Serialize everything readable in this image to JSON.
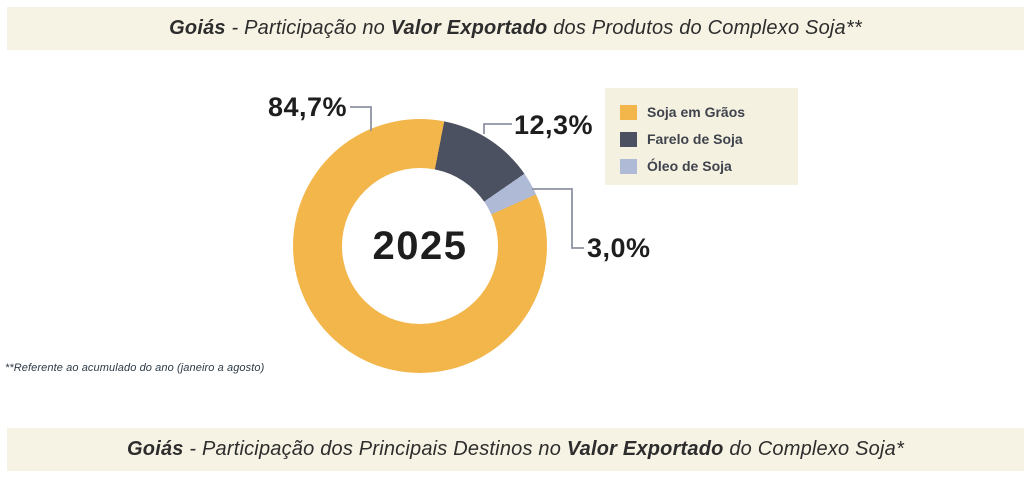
{
  "titles": {
    "top": {
      "parts": [
        {
          "text": "Goiás",
          "bold": true
        },
        {
          "text": " - Participação no ",
          "bold": false
        },
        {
          "text": "Valor Exportado",
          "bold": true
        },
        {
          "text": " dos Produtos do Complexo Soja**",
          "bold": false
        }
      ]
    },
    "bottom": {
      "parts": [
        {
          "text": "Goiás",
          "bold": true
        },
        {
          "text": " - Participação dos Principais Destinos no ",
          "bold": false
        },
        {
          "text": "Valor Exportado",
          "bold": true
        },
        {
          "text": " do Complexo Soja*",
          "bold": false
        }
      ]
    }
  },
  "chart_data": {
    "type": "pie",
    "subtype": "donut",
    "title": "Goiás - Participação no Valor Exportado dos Produtos do Complexo Soja**",
    "center_label": "2025",
    "start_angle_deg": 11,
    "slices": [
      {
        "label": "Farelo de Soja",
        "value": 12.3,
        "display": "12,3%",
        "color": "#4C5162"
      },
      {
        "label": "Óleo de Soja",
        "value": 3.0,
        "display": "3,0%",
        "color": "#AFBAD6"
      },
      {
        "label": "Soja em Grãos",
        "value": 84.7,
        "display": "84,7%",
        "color": "#F2B64B"
      }
    ],
    "legend": {
      "position": "top-right",
      "items": [
        {
          "label": "Soja em Grãos",
          "color": "#F2B64B"
        },
        {
          "label": "Farelo de Soja",
          "color": "#4C5162"
        },
        {
          "label": "Óleo de Soja",
          "color": "#AFBAD6"
        }
      ]
    },
    "footnote": "**Referente ao acumulado do ano (janeiro a agosto)"
  },
  "colors": {
    "bar_background": "#F7F3E4",
    "legend_background": "#F5F1E0",
    "callout_line": "#8F93A3"
  }
}
